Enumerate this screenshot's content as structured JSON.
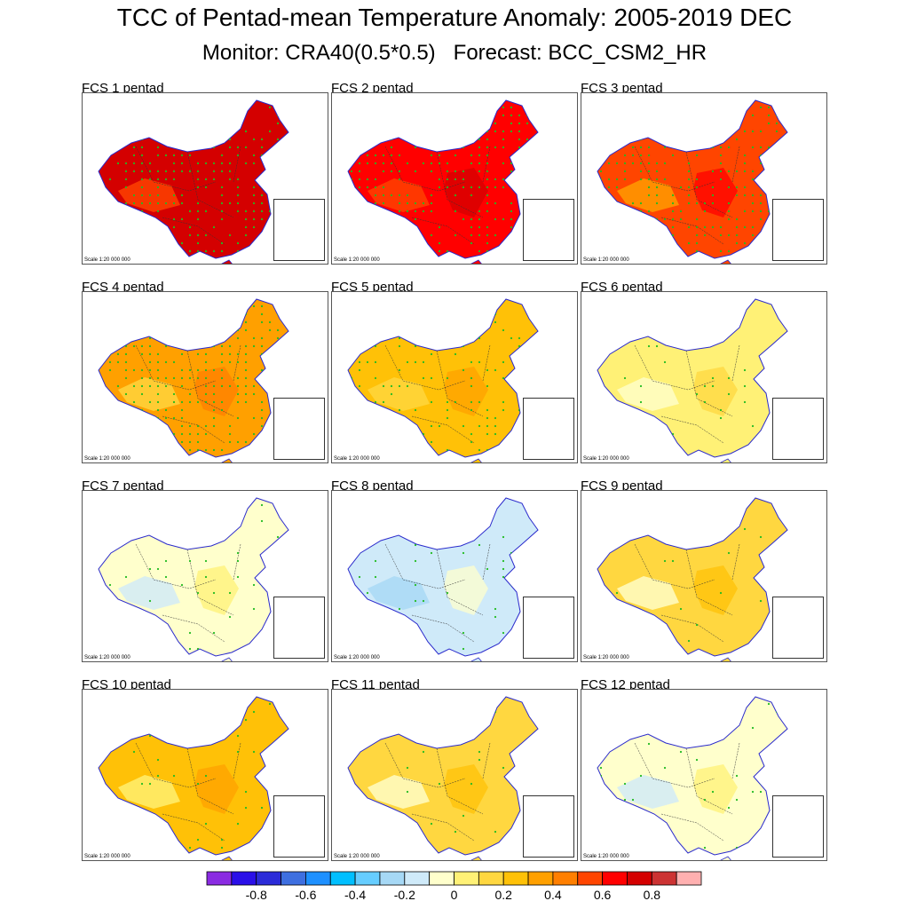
{
  "title": "TCC of Pentad-mean Temperature Anomaly: 2005-2019 DEC",
  "subtitle": "Monitor: CRA40(0.5*0.5)   Forecast: BCC_CSM2_HR",
  "scale_label": "Scale 1:20 000 000",
  "colors": {
    "neutral": "#ffffff",
    "boundary": "#2a2acc",
    "province_lines": "#333333",
    "significance_dots": "#22bb22"
  },
  "chart_data": {
    "type": "heatmap",
    "variable": "Temporal correlation coefficient (TCC)",
    "region": "China",
    "period": "2005-2019 DEC",
    "panels": [
      {
        "label": "FCS 1 pentad",
        "lead": 1,
        "dominant_tcc": 0.7,
        "significance": "widespread"
      },
      {
        "label": "FCS 2 pentad",
        "lead": 2,
        "dominant_tcc": 0.65,
        "significance": "widespread"
      },
      {
        "label": "FCS 3 pentad",
        "lead": 3,
        "dominant_tcc": 0.5,
        "significance": "widespread"
      },
      {
        "label": "FCS 4 pentad",
        "lead": 4,
        "dominant_tcc": 0.35,
        "significance": "widespread"
      },
      {
        "label": "FCS 5 pentad",
        "lead": 5,
        "dominant_tcc": 0.25,
        "significance": "partial"
      },
      {
        "label": "FCS 6 pentad",
        "lead": 6,
        "dominant_tcc": 0.05,
        "significance": "sparse"
      },
      {
        "label": "FCS 7 pentad",
        "lead": 7,
        "dominant_tcc": -0.05,
        "significance": "sparse"
      },
      {
        "label": "FCS 8 pentad",
        "lead": 8,
        "dominant_tcc": -0.15,
        "significance": "sparse"
      },
      {
        "label": "FCS 9 pentad",
        "lead": 9,
        "dominant_tcc": 0.1,
        "significance": "sparse"
      },
      {
        "label": "FCS 10 pentad",
        "lead": 10,
        "dominant_tcc": 0.2,
        "significance": "sparse"
      },
      {
        "label": "FCS 11 pentad",
        "lead": 11,
        "dominant_tcc": 0.1,
        "significance": "sparse"
      },
      {
        "label": "FCS 12 pentad",
        "lead": 12,
        "dominant_tcc": -0.05,
        "significance": "sparse"
      }
    ],
    "colorbar": {
      "colors": [
        "#8a2be2",
        "#2a0fe8",
        "#2b2bd8",
        "#3e6fe0",
        "#1e90ff",
        "#00bfff",
        "#66cdff",
        "#a6d8f5",
        "#cfeaf9",
        "#ffffcc",
        "#fff176",
        "#ffd740",
        "#ffc107",
        "#ffa000",
        "#ff7f00",
        "#ff4500",
        "#ff0000",
        "#d40000",
        "#cc3333",
        "#ffb0b0"
      ],
      "boundaries": [
        -1,
        -0.9,
        -0.8,
        -0.7,
        -0.6,
        -0.5,
        -0.4,
        -0.3,
        -0.2,
        -0.1,
        0,
        0.1,
        0.2,
        0.3,
        0.4,
        0.5,
        0.6,
        0.7,
        0.8,
        0.9,
        1
      ],
      "tick_values": [
        -0.8,
        -0.6,
        -0.4,
        -0.2,
        0,
        0.2,
        0.4,
        0.6,
        0.8
      ],
      "tick_labels": [
        "-0.8",
        "-0.6",
        "-0.4",
        "-0.2",
        "0",
        "0.2",
        "0.4",
        "0.6",
        "0.8"
      ]
    }
  }
}
